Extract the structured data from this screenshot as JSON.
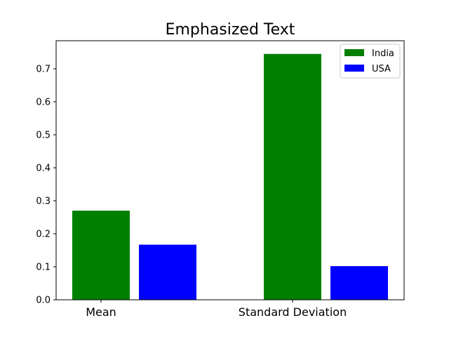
{
  "chart_data": {
    "type": "bar",
    "title": "Emphasized Text",
    "xlabel": "",
    "ylabel": "",
    "categories": [
      "Mean",
      "Standard Deviation"
    ],
    "series": [
      {
        "name": "India",
        "color": "#008000",
        "values": [
          0.27,
          0.745
        ]
      },
      {
        "name": "USA",
        "color": "#0000ff",
        "values": [
          0.167,
          0.102
        ]
      }
    ],
    "ylim": [
      0,
      0.785
    ],
    "yticks": [
      0.0,
      0.1,
      0.2,
      0.3,
      0.4,
      0.5,
      0.6,
      0.7
    ],
    "ytick_labels": [
      "0.0",
      "0.1",
      "0.2",
      "0.3",
      "0.4",
      "0.5",
      "0.6",
      "0.7"
    ],
    "legend_position": "top-right",
    "grid": false
  }
}
